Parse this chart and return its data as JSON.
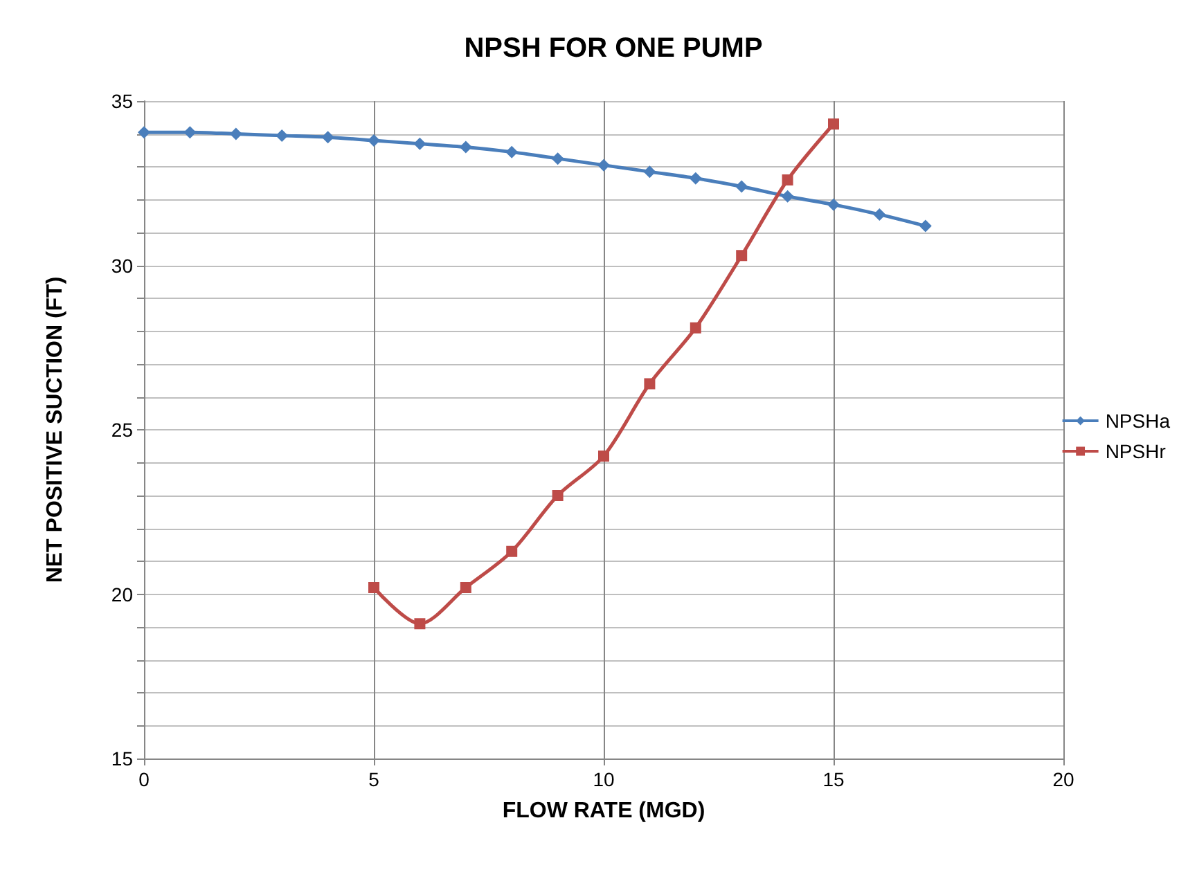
{
  "chart_data": {
    "type": "line",
    "title": "NPSH FOR ONE PUMP",
    "xlabel": "FLOW RATE (MGD)",
    "ylabel": "NET POSITIVE SUCTION (FT)",
    "xlim": [
      0,
      20
    ],
    "xticks": [
      0,
      5,
      10,
      15,
      20
    ],
    "ylim": [
      15,
      35
    ],
    "yticks": [
      15,
      {
        "value": 16,
        "label": null
      },
      {
        "value": 17,
        "label": null
      },
      {
        "value": 18,
        "label": null
      },
      {
        "value": 19,
        "label": null
      },
      20,
      {
        "value": 21,
        "label": null
      },
      {
        "value": 22,
        "label": null
      },
      {
        "value": 23,
        "label": null
      },
      {
        "value": 24,
        "label": null
      },
      25,
      {
        "value": 26,
        "label": null
      },
      {
        "value": 27,
        "label": null
      },
      {
        "value": 28,
        "label": null
      },
      {
        "value": 29,
        "label": null
      },
      30,
      {
        "value": 31,
        "label": null
      },
      {
        "value": 32,
        "label": null
      },
      {
        "value": 33,
        "label": null
      },
      {
        "value": 34,
        "label": null
      },
      35
    ],
    "grid": true,
    "legend": "right",
    "line_style": "solid",
    "series": [
      {
        "name": "NPSHa",
        "color": "#4a7ebb",
        "marker": "diamond",
        "x": [
          0,
          1,
          2,
          3,
          4,
          5,
          6,
          7,
          8,
          9,
          10,
          11,
          12,
          13,
          14,
          15,
          16,
          17
        ],
        "values": [
          34.05,
          34.05,
          34.0,
          33.95,
          33.9,
          33.8,
          33.7,
          33.6,
          33.45,
          33.25,
          33.05,
          32.85,
          32.65,
          32.4,
          32.1,
          31.85,
          31.55,
          31.2
        ]
      },
      {
        "name": "NPSHr",
        "color": "#be4b48",
        "marker": "square",
        "x": [
          5,
          6,
          7,
          8,
          9,
          10,
          11,
          12,
          13,
          14,
          15
        ],
        "values": [
          20.2,
          19.1,
          20.2,
          21.3,
          23.0,
          24.2,
          26.4,
          28.1,
          30.3,
          32.6,
          34.3
        ]
      }
    ]
  }
}
